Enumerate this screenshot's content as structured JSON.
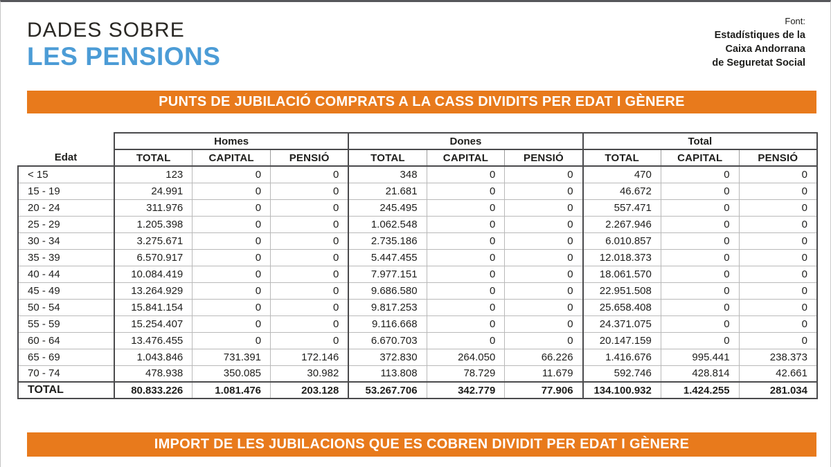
{
  "header": {
    "title_line1": "DADES SOBRE",
    "title_line2": "LES PENSIONS",
    "source": {
      "label": "Font:",
      "line1": "Estadístiques de la",
      "line2": "Caixa Andorrana",
      "line3": "de Seguretat Social"
    }
  },
  "banner_top": {
    "text": "PUNTS DE JUBILACIÓ COMPRATS A LA CASS DIVIDITS PER EDAT I GÈNERE"
  },
  "banner_bottom": {
    "text": "IMPORT DE LES JUBILACIONS QUE ES COBREN DIVIDIT PER EDAT I GÈNERE"
  },
  "colors": {
    "accent_orange": "#E87A1C",
    "title_blue": "#4C9CD6",
    "text_dark": "#1E1E1C"
  },
  "chart_data": {
    "type": "table",
    "row_header": "Edat",
    "groups": [
      {
        "label": "Homes",
        "columns": [
          "TOTAL",
          "CAPITAL",
          "PENSIÓ"
        ]
      },
      {
        "label": "Dones",
        "columns": [
          "TOTAL",
          "CAPITAL",
          "PENSIÓ"
        ]
      },
      {
        "label": "Total",
        "columns": [
          "TOTAL",
          "CAPITAL",
          "PENSIÓ"
        ]
      }
    ],
    "rows": [
      {
        "label": "< 15",
        "cells": [
          "123",
          "0",
          "0",
          "348",
          "0",
          "0",
          "470",
          "0",
          "0"
        ]
      },
      {
        "label": "15 - 19",
        "cells": [
          "24.991",
          "0",
          "0",
          "21.681",
          "0",
          "0",
          "46.672",
          "0",
          "0"
        ]
      },
      {
        "label": "20 - 24",
        "cells": [
          "311.976",
          "0",
          "0",
          "245.495",
          "0",
          "0",
          "557.471",
          "0",
          "0"
        ]
      },
      {
        "label": "25 - 29",
        "cells": [
          "1.205.398",
          "0",
          "0",
          "1.062.548",
          "0",
          "0",
          "2.267.946",
          "0",
          "0"
        ]
      },
      {
        "label": "30 - 34",
        "cells": [
          "3.275.671",
          "0",
          "0",
          "2.735.186",
          "0",
          "0",
          "6.010.857",
          "0",
          "0"
        ]
      },
      {
        "label": "35 - 39",
        "cells": [
          "6.570.917",
          "0",
          "0",
          "5.447.455",
          "0",
          "0",
          "12.018.373",
          "0",
          "0"
        ]
      },
      {
        "label": "40 - 44",
        "cells": [
          "10.084.419",
          "0",
          "0",
          "7.977.151",
          "0",
          "0",
          "18.061.570",
          "0",
          "0"
        ]
      },
      {
        "label": "45 - 49",
        "cells": [
          "13.264.929",
          "0",
          "0",
          "9.686.580",
          "0",
          "0",
          "22.951.508",
          "0",
          "0"
        ]
      },
      {
        "label": "50 - 54",
        "cells": [
          "15.841.154",
          "0",
          "0",
          "9.817.253",
          "0",
          "0",
          "25.658.408",
          "0",
          "0"
        ]
      },
      {
        "label": "55 - 59",
        "cells": [
          "15.254.407",
          "0",
          "0",
          "9.116.668",
          "0",
          "0",
          "24.371.075",
          "0",
          "0"
        ]
      },
      {
        "label": "60 - 64",
        "cells": [
          "13.476.455",
          "0",
          "0",
          "6.670.703",
          "0",
          "0",
          "20.147.159",
          "0",
          "0"
        ]
      },
      {
        "label": "65 - 69",
        "cells": [
          "1.043.846",
          "731.391",
          "172.146",
          "372.830",
          "264.050",
          "66.226",
          "1.416.676",
          "995.441",
          "238.373"
        ]
      },
      {
        "label": "70 - 74",
        "cells": [
          "478.938",
          "350.085",
          "30.982",
          "113.808",
          "78.729",
          "11.679",
          "592.746",
          "428.814",
          "42.661"
        ]
      }
    ],
    "total_row": {
      "label": "TOTAL",
      "cells": [
        "80.833.226",
        "1.081.476",
        "203.128",
        "53.267.706",
        "342.779",
        "77.906",
        "134.100.932",
        "1.424.255",
        "281.034"
      ]
    }
  }
}
